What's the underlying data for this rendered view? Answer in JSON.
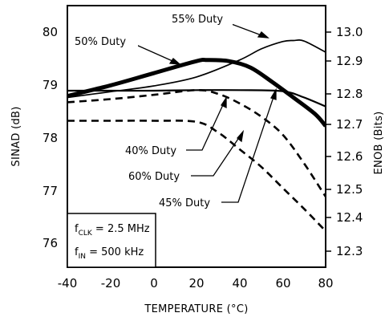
{
  "chart_data": {
    "type": "line",
    "xlabel": "TEMPERATURE (°C)",
    "ylabel_left": "SINAD (dB)",
    "ylabel_right": "ENOB (Bits)",
    "xlim": [
      -40,
      80
    ],
    "ylim_left": [
      75.6,
      80.5
    ],
    "ylim_right": [
      12.255,
      13.05
    ],
    "x_ticks": [
      "-40",
      "-20",
      "0",
      "20",
      "40",
      "60",
      "80"
    ],
    "y_ticks_left": [
      "76",
      "77",
      "78",
      "79",
      "80"
    ],
    "y_ticks_right": [
      "12.3",
      "12.4",
      "12.5",
      "12.6",
      "12.7",
      "12.8",
      "12.9",
      "13.0"
    ],
    "grid": false,
    "conditions": [
      {
        "label": "f",
        "sub": "CLK",
        "value": " = 2.5 MHz"
      },
      {
        "label": "f",
        "sub": "IN",
        "value": " = 500 kHz"
      }
    ],
    "series": [
      {
        "name": "55% Duty",
        "style": "thin-solid",
        "x": [
          -40,
          -20,
          0,
          20,
          40,
          50,
          60,
          65,
          70,
          80
        ],
        "y": [
          78.76,
          78.87,
          78.98,
          79.15,
          79.47,
          79.68,
          79.82,
          79.84,
          79.83,
          79.62
        ]
      },
      {
        "name": "50% Duty",
        "style": "thick-solid",
        "x": [
          -40,
          -20,
          0,
          20,
          25,
          35,
          45,
          55,
          65,
          75,
          80
        ],
        "y": [
          78.79,
          78.99,
          79.22,
          79.45,
          79.47,
          79.45,
          79.33,
          79.06,
          78.76,
          78.45,
          78.22
        ]
      },
      {
        "name": "40% Duty",
        "style": "medium-solid",
        "x": [
          -40,
          -20,
          0,
          20,
          40,
          60,
          70,
          80
        ],
        "y": [
          78.89,
          78.89,
          78.89,
          78.9,
          78.9,
          78.88,
          78.76,
          78.59
        ]
      },
      {
        "name": "60% Duty",
        "style": "dashed",
        "x": [
          -40,
          -20,
          0,
          20,
          30,
          40,
          50,
          60,
          70,
          80
        ],
        "y": [
          78.67,
          78.73,
          78.81,
          78.9,
          78.83,
          78.65,
          78.4,
          78.06,
          77.51,
          76.88
        ]
      },
      {
        "name": "45% Duty",
        "style": "dashed",
        "x": [
          -40,
          -20,
          0,
          20,
          30,
          40,
          50,
          60,
          70,
          80
        ],
        "y": [
          78.32,
          78.32,
          78.32,
          78.3,
          78.1,
          77.78,
          77.45,
          77.05,
          76.65,
          76.23
        ]
      }
    ],
    "annotations": [
      "55% Duty",
      "50% Duty",
      "40% Duty",
      "60% Duty",
      "45% Duty"
    ]
  }
}
